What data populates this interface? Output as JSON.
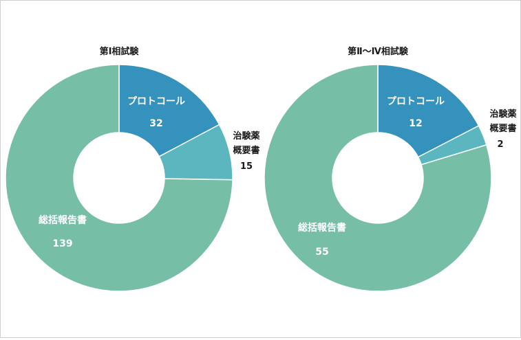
{
  "chart_data": [
    {
      "type": "pie",
      "title": "第Ⅰ相試験",
      "slices": [
        {
          "label": "プロトコール",
          "value": 32,
          "color": "#3592bd"
        },
        {
          "label": "治験薬概要書",
          "value": 15,
          "color": "#5bb6bf"
        },
        {
          "label": "総括報告書",
          "value": 139,
          "color": "#76bfa6"
        }
      ]
    },
    {
      "type": "pie",
      "title": "第Ⅱ～Ⅳ相試験",
      "slices": [
        {
          "label": "プロトコール",
          "value": 12,
          "color": "#3592bd"
        },
        {
          "label": "治験薬概要書",
          "value": 2,
          "color": "#5bb6bf"
        },
        {
          "label": "総括報告書",
          "value": 55,
          "color": "#76bfa6"
        }
      ]
    }
  ],
  "labels": {
    "c0": {
      "s0_name": "プロトコール",
      "s0_value": "32",
      "s1_name_a": "治験薬",
      "s1_name_b": "概要書",
      "s1_value": "15",
      "s2_name": "総括報告書",
      "s2_value": "139"
    },
    "c1": {
      "s0_name": "プロトコール",
      "s0_value": "12",
      "s1_name_a": "治験薬",
      "s1_name_b": "概要書",
      "s1_value": "2",
      "s2_name": "総括報告書",
      "s2_value": "55"
    }
  }
}
